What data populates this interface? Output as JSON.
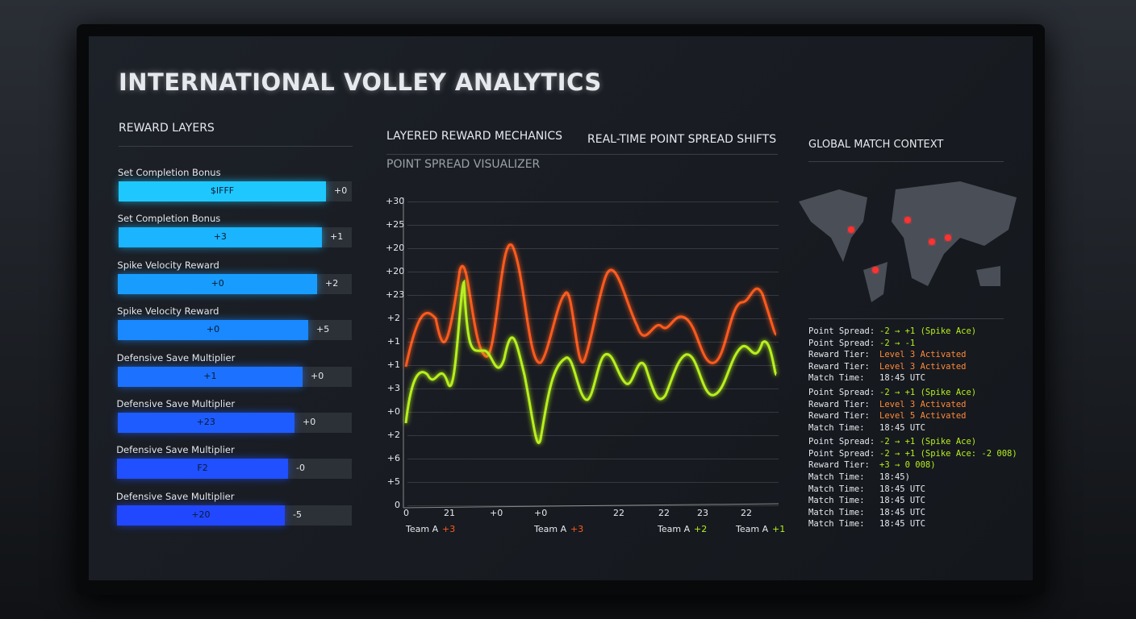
{
  "header": {
    "title": "INTERNATIONAL VOLLEY ANALYTICS"
  },
  "reward_layers": {
    "title": "REWARD LAYERS",
    "items": [
      {
        "label": "Set Completion Bonus",
        "bar_text": "$IFFF",
        "delta": "+0"
      },
      {
        "label": "Set Completion Bonus",
        "bar_text": "+3",
        "delta": "+1"
      },
      {
        "label": "Spike Velocity Reward",
        "bar_text": "+0",
        "delta": "+2"
      },
      {
        "label": "Spike Velocity Reward",
        "bar_text": "+0",
        "delta": "+5"
      },
      {
        "label": "Defensive Save Multiplier",
        "bar_text": "+1",
        "delta": "+0"
      },
      {
        "label": "Defensive Save Multiplier",
        "bar_text": "+23",
        "delta": "+0"
      },
      {
        "label": "Defensive Save Multiplier",
        "bar_text": "F2",
        "delta": "-0"
      },
      {
        "label": "Defensive Save Multiplier",
        "bar_text": "+20",
        "delta": "-5"
      }
    ]
  },
  "center": {
    "tabs": [
      "LAYERED REWARD MECHANICS",
      "REAL-TIME POINT SPREAD SHIFTS"
    ],
    "subtitle": "POINT SPREAD VISUALIZER",
    "y_labels": [
      "+30",
      "+25",
      "+20",
      "+20",
      "+23",
      "+2",
      "+1",
      "+1",
      "+3",
      "+0",
      "+2",
      "+6",
      "+5",
      "0"
    ],
    "x_labels": [
      "0",
      "21",
      "+0",
      "+0",
      "22",
      "22",
      "23",
      "22"
    ],
    "teams": [
      {
        "name": "Team A",
        "score": "+3"
      },
      {
        "name": "Team A",
        "score": "+3"
      },
      {
        "name": "Team A",
        "score": "+2"
      },
      {
        "name": "Team A",
        "score": "+1"
      }
    ]
  },
  "context": {
    "title": "GLOBAL MATCH CONTEXT",
    "log": [
      {
        "key": "Point Spread:",
        "value": "-2 → +1 (Spike Ace)"
      },
      {
        "key": "Point Spread:",
        "value": "-2 → -1"
      },
      {
        "key": "Reward Tier:",
        "value": "Level 3 Activated"
      },
      {
        "key": "Reward Tier:",
        "value": "Level 3 Activated"
      },
      {
        "key": "Match Time:",
        "value": "18:45 UTC"
      },
      {
        "key": "Point Spread:",
        "value": "-2 → +1 (Spike Ace)"
      },
      {
        "key": "Reward Tier:",
        "value": "Level 3 Activated"
      },
      {
        "key": "Reward Tier:",
        "value": "Level 5 Activated"
      },
      {
        "key": "Match Time:",
        "value": "18:45 UTC"
      },
      {
        "key": "Point Spread:",
        "value": "-2 → +1 (Spike Ace)"
      },
      {
        "key": "Point Spread:",
        "value": "-2 → +1 (Spike Ace: -2 008)"
      },
      {
        "key": "Reward Tier:",
        "value": "+3 → 0 008)"
      },
      {
        "key": "Match Time:",
        "value": "18:45)"
      },
      {
        "key": "Match Time:",
        "value": "18:45 UTC"
      },
      {
        "key": "Match Time:",
        "value": "18:45 UTC"
      },
      {
        "key": "Match Time:",
        "value": "18:45 UTC"
      },
      {
        "key": "Match Time:",
        "value": "18:45 UTC"
      }
    ]
  }
}
